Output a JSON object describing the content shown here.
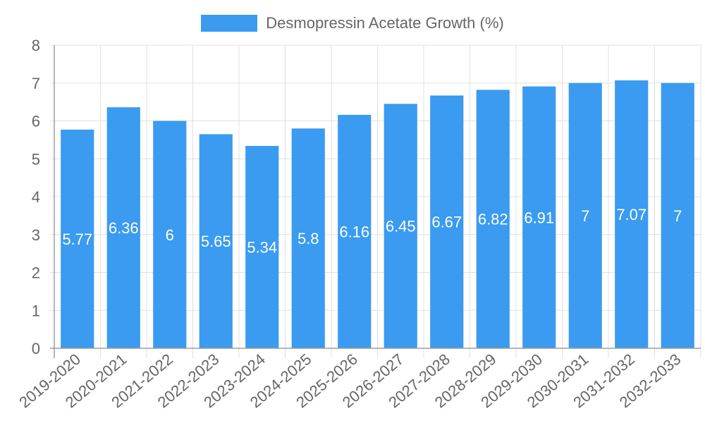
{
  "chart_data": {
    "type": "bar",
    "title": "",
    "legend": [
      "Desmopressin Acetate Growth (%)"
    ],
    "legend_position": "top",
    "xlabel": "",
    "ylabel": "",
    "ylim": [
      0,
      8
    ],
    "yticks": [
      "0",
      "1",
      "2",
      "3",
      "4",
      "5",
      "6",
      "7",
      "8"
    ],
    "grid": true,
    "categories": [
      "2019-2020",
      "2020-2021",
      "2021-2022",
      "2022-2023",
      "2023-2024",
      "2024-2025",
      "2025-2026",
      "2026-2027",
      "2027-2028",
      "2028-2029",
      "2029-2030",
      "2030-2031",
      "2031-2032",
      "2032-2033"
    ],
    "series": [
      {
        "name": "Desmopressin Acetate Growth (%)",
        "color": "#3a9bf0",
        "values": [
          5.77,
          6.36,
          6,
          5.65,
          5.34,
          5.8,
          6.16,
          6.45,
          6.67,
          6.82,
          6.91,
          7,
          7.07,
          7
        ],
        "labels": [
          "5.77",
          "6.36",
          "6",
          "5.65",
          "5.34",
          "5.8",
          "6.16",
          "6.45",
          "6.67",
          "6.82",
          "6.91",
          "7",
          "7.07",
          "7"
        ]
      }
    ]
  },
  "legend": {
    "label": "Desmopressin Acetate Growth (%)",
    "color": "#3a9bf0"
  },
  "colors": {
    "bar": "#3a9bf0",
    "grid": "#e0e0e0",
    "axis": "#9e9e9e",
    "text": "#666666",
    "bar_label": "#ffffff"
  }
}
